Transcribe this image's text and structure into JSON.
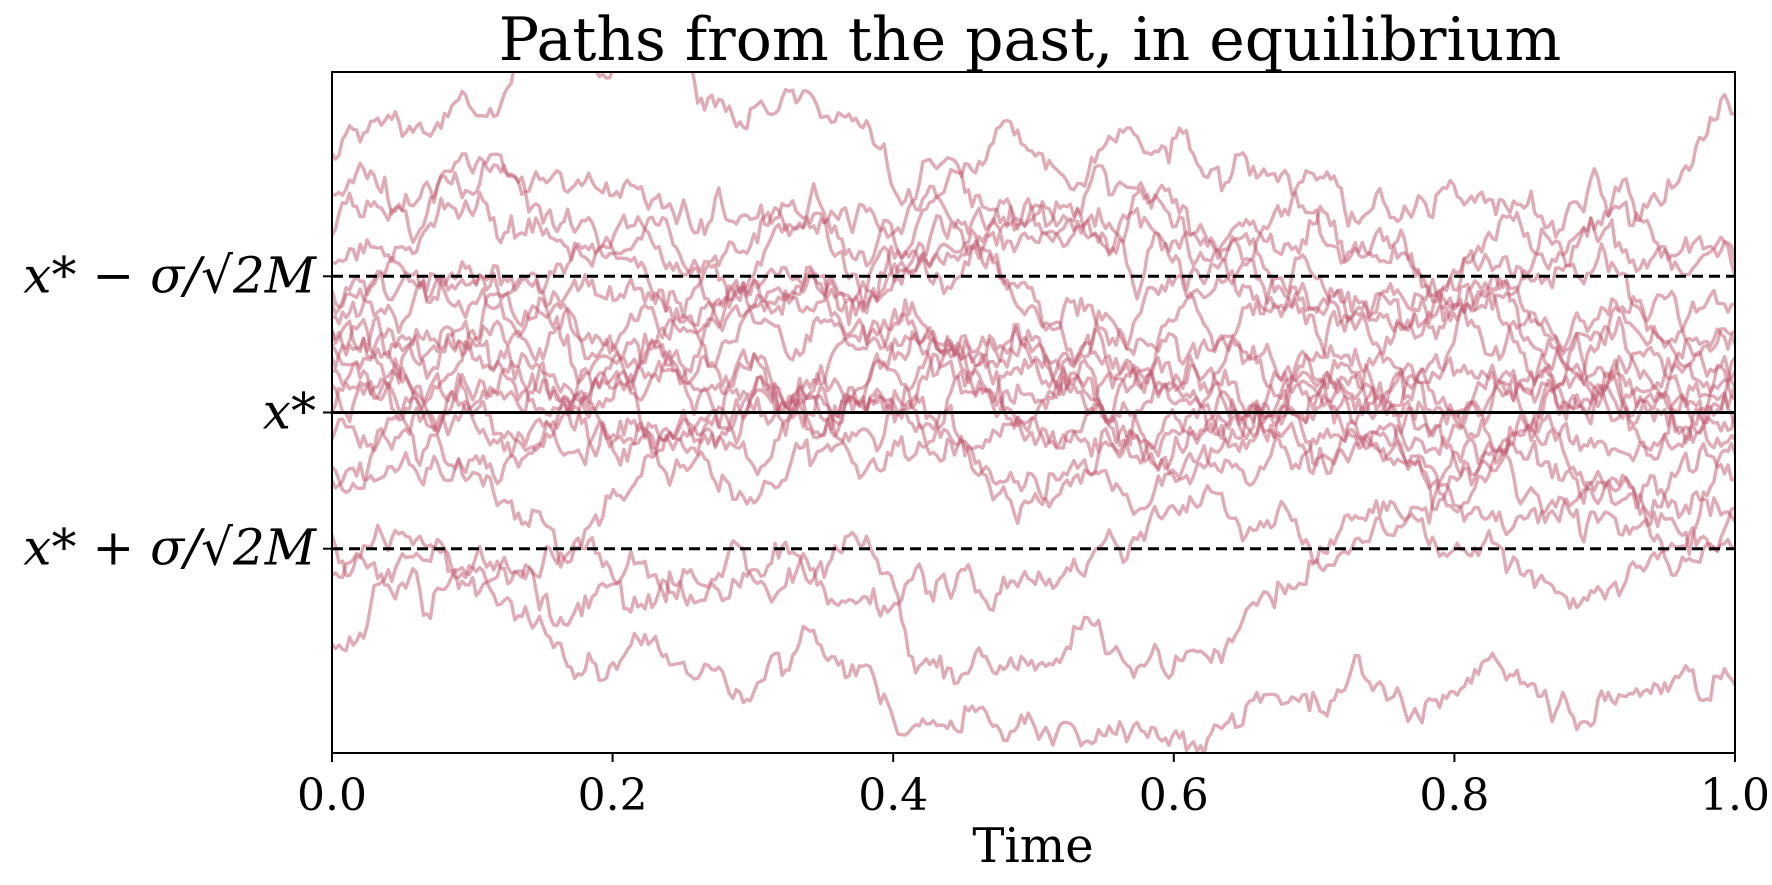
{
  "chart_data": {
    "type": "line",
    "title": "Paths from the past, in equilibrium",
    "xlabel": "Time",
    "ylabel": "",
    "xlim": [
      0.0,
      1.0
    ],
    "ylim": [
      -2.5,
      2.5
    ],
    "x_ticks": [
      "0.0",
      "0.2",
      "0.4",
      "0.6",
      "0.8",
      "1.0"
    ],
    "y_ticks": [
      {
        "value": 1.0,
        "label": "x* − σ/√2M"
      },
      {
        "value": 0.0,
        "label": "x*"
      },
      {
        "value": -1.0,
        "label": "x* + σ/√2M"
      }
    ],
    "reference_lines": [
      {
        "y": 1.0,
        "style": "dashed",
        "color": "#000000"
      },
      {
        "y": 0.0,
        "style": "solid",
        "color": "#000000"
      },
      {
        "y": -1.0,
        "style": "dashed",
        "color": "#000000"
      }
    ],
    "path_color": "#c0586e",
    "path_opacity": 0.5,
    "n_points": 400,
    "series": [
      {
        "start": 1.9,
        "end": 2.2
      },
      {
        "start": 0.6,
        "end": 0.2
      },
      {
        "start": -1.7,
        "end": -2.0
      },
      {
        "start": 0.3,
        "end": -0.1
      },
      {
        "start": 0.9,
        "end": 0.3
      },
      {
        "start": 0.5,
        "end": 0.6
      },
      {
        "start": 0.2,
        "end": -0.2
      },
      {
        "start": -0.5,
        "end": -1.0
      },
      {
        "start": 0.7,
        "end": 1.1
      },
      {
        "start": 1.1,
        "end": 0.5
      },
      {
        "start": -0.2,
        "end": 0.1
      },
      {
        "start": 0.4,
        "end": -0.5
      },
      {
        "start": 1.3,
        "end": 0.8
      },
      {
        "start": -0.9,
        "end": -0.3
      },
      {
        "start": 0.0,
        "end": 0.2
      },
      {
        "start": 0.8,
        "end": -0.7
      },
      {
        "start": -0.4,
        "end": 0.4
      },
      {
        "start": 0.6,
        "end": 0.0
      },
      {
        "start": 1.6,
        "end": 1.0
      },
      {
        "start": -1.2,
        "end": -0.8
      }
    ]
  }
}
